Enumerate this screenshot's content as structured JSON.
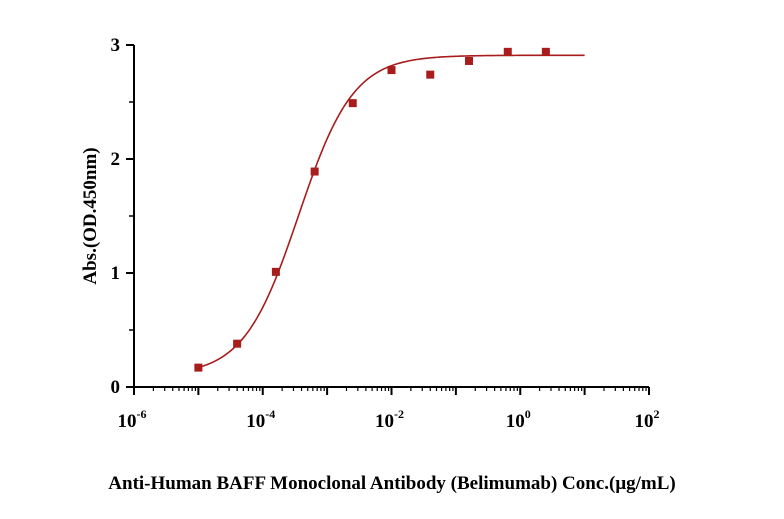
{
  "chart_data": {
    "type": "scatter",
    "title": "",
    "xlabel": "Anti-Human BAFF Monoclonal Antibody (Belimumab)  Conc.(μg/mL)",
    "ylabel": "Abs.(OD.450nm)",
    "xscale": "log10",
    "xlim": [
      1e-06,
      100
    ],
    "ylim": [
      0,
      3
    ],
    "x_ticks": [
      {
        "base": "10",
        "exp": "-6"
      },
      {
        "base": "10",
        "exp": "-4"
      },
      {
        "base": "10",
        "exp": "-2"
      },
      {
        "base": "10",
        "exp": "0"
      },
      {
        "base": "10",
        "exp": "2"
      }
    ],
    "y_ticks": [
      "0",
      "1",
      "2",
      "3"
    ],
    "grid": false,
    "legend": "none",
    "colors": {
      "series": "#a81c1c",
      "axis": "#000000"
    },
    "series": [
      {
        "points": [
          {
            "x": 1e-05,
            "y": 0.17
          },
          {
            "x": 4e-05,
            "y": 0.38
          },
          {
            "x": 0.00016,
            "y": 1.01
          },
          {
            "x": 0.00064,
            "y": 1.89
          },
          {
            "x": 0.0025,
            "y": 2.49
          },
          {
            "x": 0.01,
            "y": 2.78
          },
          {
            "x": 0.04,
            "y": 2.74
          },
          {
            "x": 0.16,
            "y": 2.86
          },
          {
            "x": 0.64,
            "y": 2.94
          },
          {
            "x": 2.5,
            "y": 2.94
          }
        ],
        "fit": {
          "model": "4PL",
          "bottom": 0.1,
          "top": 2.91,
          "ec50": 0.00036,
          "hill": 1.02,
          "x_range": [
            1e-05,
            10
          ]
        }
      }
    ]
  }
}
